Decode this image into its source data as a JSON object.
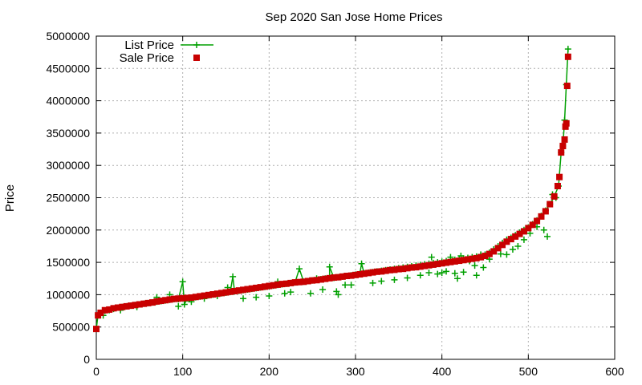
{
  "chart_data": {
    "type": "scatter",
    "title": "Sep 2020 San Jose Home Prices",
    "xlabel": "",
    "ylabel": "Price",
    "xlim": [
      0,
      600
    ],
    "ylim": [
      0,
      5000000
    ],
    "x_ticks": [
      0,
      100,
      200,
      300,
      400,
      500,
      600
    ],
    "x_tick_labels": [
      "0",
      "100",
      "200",
      "300",
      "400",
      "500",
      "600"
    ],
    "y_ticks": [
      0,
      500000,
      1000000,
      1500000,
      2000000,
      2500000,
      3000000,
      3500000,
      4000000,
      4500000,
      5000000
    ],
    "y_tick_labels": [
      "0",
      "500000",
      "1000000",
      "1500000",
      "2000000",
      "2500000",
      "3000000",
      "3500000",
      "4000000",
      "4500000",
      "5000000"
    ],
    "grid": true,
    "legend_position": "top-left",
    "series": [
      {
        "name": "List Price",
        "style": "line-cross",
        "color": "#00a000",
        "points": [
          [
            0,
            470000
          ],
          [
            2,
            690000
          ],
          [
            5,
            720000
          ],
          [
            10,
            750000
          ],
          [
            15,
            760000
          ],
          [
            20,
            780000
          ],
          [
            25,
            800000
          ],
          [
            30,
            810000
          ],
          [
            35,
            820000
          ],
          [
            40,
            830000
          ],
          [
            45,
            840000
          ],
          [
            50,
            850000
          ],
          [
            55,
            860000
          ],
          [
            60,
            870000
          ],
          [
            65,
            880000
          ],
          [
            70,
            890000
          ],
          [
            75,
            900000
          ],
          [
            80,
            910000
          ],
          [
            85,
            920000
          ],
          [
            90,
            930000
          ],
          [
            95,
            930000
          ],
          [
            100,
            1200000
          ],
          [
            102,
            850000
          ],
          [
            105,
            940000
          ],
          [
            110,
            950000
          ],
          [
            115,
            960000
          ],
          [
            120,
            970000
          ],
          [
            125,
            980000
          ],
          [
            130,
            990000
          ],
          [
            135,
            1000000
          ],
          [
            140,
            1010000
          ],
          [
            145,
            1020000
          ],
          [
            150,
            1030000
          ],
          [
            155,
            1040000
          ],
          [
            158,
            1280000
          ],
          [
            160,
            1050000
          ],
          [
            165,
            1060000
          ],
          [
            170,
            1070000
          ],
          [
            175,
            1080000
          ],
          [
            180,
            1090000
          ],
          [
            185,
            1100000
          ],
          [
            190,
            1110000
          ],
          [
            195,
            1120000
          ],
          [
            200,
            1130000
          ],
          [
            205,
            1140000
          ],
          [
            210,
            1150000
          ],
          [
            215,
            1160000
          ],
          [
            220,
            1170000
          ],
          [
            225,
            1180000
          ],
          [
            230,
            1190000
          ],
          [
            235,
            1400000
          ],
          [
            240,
            1200000
          ],
          [
            245,
            1210000
          ],
          [
            250,
            1220000
          ],
          [
            255,
            1230000
          ],
          [
            260,
            1240000
          ],
          [
            265,
            1250000
          ],
          [
            270,
            1260000
          ],
          [
            270,
            1430000
          ],
          [
            275,
            1260000
          ],
          [
            280,
            1270000
          ],
          [
            285,
            1280000
          ],
          [
            290,
            1290000
          ],
          [
            295,
            1300000
          ],
          [
            300,
            1310000
          ],
          [
            305,
            1320000
          ],
          [
            307,
            1480000
          ],
          [
            310,
            1330000
          ],
          [
            315,
            1340000
          ],
          [
            320,
            1350000
          ],
          [
            325,
            1360000
          ],
          [
            330,
            1370000
          ],
          [
            335,
            1380000
          ],
          [
            340,
            1390000
          ],
          [
            345,
            1400000
          ],
          [
            350,
            1410000
          ],
          [
            355,
            1420000
          ],
          [
            360,
            1430000
          ],
          [
            365,
            1440000
          ],
          [
            370,
            1450000
          ],
          [
            375,
            1460000
          ],
          [
            380,
            1470000
          ],
          [
            385,
            1480000
          ],
          [
            390,
            1490000
          ],
          [
            395,
            1500000
          ],
          [
            400,
            1510000
          ],
          [
            405,
            1520000
          ],
          [
            410,
            1530000
          ],
          [
            415,
            1540000
          ],
          [
            420,
            1550000
          ],
          [
            425,
            1560000
          ],
          [
            430,
            1570000
          ],
          [
            435,
            1580000
          ],
          [
            440,
            1590000
          ],
          [
            445,
            1600000
          ],
          [
            450,
            1620000
          ],
          [
            455,
            1650000
          ],
          [
            460,
            1700000
          ],
          [
            465,
            1750000
          ],
          [
            470,
            1800000
          ],
          [
            475,
            1850000
          ],
          [
            480,
            1880000
          ],
          [
            485,
            1920000
          ],
          [
            490,
            1960000
          ],
          [
            495,
            2000000
          ],
          [
            500,
            2040000
          ],
          [
            505,
            2090000
          ],
          [
            510,
            2150000
          ],
          [
            515,
            2220000
          ],
          [
            520,
            2300000
          ],
          [
            525,
            2400000
          ],
          [
            530,
            2520000
          ],
          [
            535,
            2680000
          ],
          [
            538,
            3200000
          ],
          [
            540,
            3300000
          ],
          [
            542,
            3700000
          ],
          [
            544,
            4250000
          ],
          [
            546,
            4800000
          ]
        ],
        "outliers": [
          [
            8,
            680000
          ],
          [
            28,
            760000
          ],
          [
            47,
            810000
          ],
          [
            70,
            960000
          ],
          [
            85,
            1000000
          ],
          [
            95,
            820000
          ],
          [
            110,
            890000
          ],
          [
            125,
            940000
          ],
          [
            140,
            980000
          ],
          [
            152,
            1110000
          ],
          [
            170,
            940000
          ],
          [
            185,
            960000
          ],
          [
            200,
            980000
          ],
          [
            210,
            1200000
          ],
          [
            218,
            1020000
          ],
          [
            225,
            1040000
          ],
          [
            248,
            1020000
          ],
          [
            255,
            1250000
          ],
          [
            262,
            1080000
          ],
          [
            278,
            1050000
          ],
          [
            280,
            1000000
          ],
          [
            288,
            1150000
          ],
          [
            295,
            1150000
          ],
          [
            320,
            1180000
          ],
          [
            330,
            1210000
          ],
          [
            345,
            1230000
          ],
          [
            360,
            1260000
          ],
          [
            375,
            1300000
          ],
          [
            385,
            1340000
          ],
          [
            388,
            1580000
          ],
          [
            395,
            1320000
          ],
          [
            400,
            1340000
          ],
          [
            405,
            1360000
          ],
          [
            410,
            1580000
          ],
          [
            415,
            1330000
          ],
          [
            418,
            1250000
          ],
          [
            422,
            1600000
          ],
          [
            425,
            1350000
          ],
          [
            432,
            1520000
          ],
          [
            438,
            1450000
          ],
          [
            440,
            1300000
          ],
          [
            445,
            1620000
          ],
          [
            448,
            1420000
          ],
          [
            455,
            1550000
          ],
          [
            468,
            1630000
          ],
          [
            475,
            1620000
          ],
          [
            482,
            1700000
          ],
          [
            488,
            1750000
          ],
          [
            495,
            1850000
          ],
          [
            502,
            1950000
          ],
          [
            510,
            2050000
          ],
          [
            518,
            2000000
          ],
          [
            522,
            1900000
          ],
          [
            528,
            2550000
          ],
          [
            532,
            2500000
          ]
        ]
      },
      {
        "name": "Sale Price",
        "style": "square",
        "color": "#c80000",
        "points": [
          [
            0,
            470000
          ],
          [
            2,
            680000
          ],
          [
            5,
            720000
          ],
          [
            10,
            760000
          ],
          [
            15,
            770000
          ],
          [
            20,
            790000
          ],
          [
            25,
            800000
          ],
          [
            30,
            810000
          ],
          [
            35,
            820000
          ],
          [
            40,
            830000
          ],
          [
            45,
            840000
          ],
          [
            50,
            850000
          ],
          [
            55,
            860000
          ],
          [
            60,
            870000
          ],
          [
            65,
            880000
          ],
          [
            70,
            895000
          ],
          [
            75,
            905000
          ],
          [
            80,
            915000
          ],
          [
            85,
            925000
          ],
          [
            90,
            935000
          ],
          [
            95,
            940000
          ],
          [
            100,
            945000
          ],
          [
            105,
            950000
          ],
          [
            110,
            955000
          ],
          [
            115,
            965000
          ],
          [
            120,
            975000
          ],
          [
            125,
            985000
          ],
          [
            130,
            995000
          ],
          [
            135,
            1005000
          ],
          [
            140,
            1015000
          ],
          [
            145,
            1025000
          ],
          [
            150,
            1035000
          ],
          [
            155,
            1045000
          ],
          [
            160,
            1055000
          ],
          [
            165,
            1065000
          ],
          [
            170,
            1075000
          ],
          [
            175,
            1085000
          ],
          [
            180,
            1095000
          ],
          [
            185,
            1105000
          ],
          [
            190,
            1115000
          ],
          [
            195,
            1125000
          ],
          [
            200,
            1135000
          ],
          [
            205,
            1145000
          ],
          [
            210,
            1155000
          ],
          [
            215,
            1165000
          ],
          [
            220,
            1170000
          ],
          [
            225,
            1180000
          ],
          [
            230,
            1190000
          ],
          [
            235,
            1195000
          ],
          [
            240,
            1200000
          ],
          [
            245,
            1210000
          ],
          [
            250,
            1220000
          ],
          [
            255,
            1225000
          ],
          [
            260,
            1235000
          ],
          [
            265,
            1245000
          ],
          [
            270,
            1255000
          ],
          [
            275,
            1265000
          ],
          [
            280,
            1270000
          ],
          [
            285,
            1280000
          ],
          [
            290,
            1290000
          ],
          [
            295,
            1295000
          ],
          [
            300,
            1305000
          ],
          [
            305,
            1315000
          ],
          [
            310,
            1325000
          ],
          [
            315,
            1335000
          ],
          [
            320,
            1345000
          ],
          [
            325,
            1355000
          ],
          [
            330,
            1360000
          ],
          [
            335,
            1370000
          ],
          [
            340,
            1380000
          ],
          [
            345,
            1385000
          ],
          [
            350,
            1395000
          ],
          [
            355,
            1400000
          ],
          [
            360,
            1410000
          ],
          [
            365,
            1420000
          ],
          [
            370,
            1425000
          ],
          [
            375,
            1435000
          ],
          [
            380,
            1445000
          ],
          [
            385,
            1455000
          ],
          [
            390,
            1465000
          ],
          [
            395,
            1475000
          ],
          [
            400,
            1485000
          ],
          [
            405,
            1495000
          ],
          [
            410,
            1505000
          ],
          [
            415,
            1515000
          ],
          [
            420,
            1525000
          ],
          [
            425,
            1535000
          ],
          [
            430,
            1545000
          ],
          [
            435,
            1555000
          ],
          [
            440,
            1565000
          ],
          [
            445,
            1580000
          ],
          [
            450,
            1600000
          ],
          [
            455,
            1630000
          ],
          [
            460,
            1670000
          ],
          [
            465,
            1720000
          ],
          [
            470,
            1770000
          ],
          [
            475,
            1820000
          ],
          [
            480,
            1860000
          ],
          [
            485,
            1900000
          ],
          [
            490,
            1940000
          ],
          [
            495,
            1980000
          ],
          [
            500,
            2030000
          ],
          [
            505,
            2080000
          ],
          [
            510,
            2140000
          ],
          [
            515,
            2210000
          ],
          [
            520,
            2290000
          ],
          [
            525,
            2400000
          ],
          [
            530,
            2520000
          ],
          [
            534,
            2680000
          ],
          [
            536,
            2820000
          ],
          [
            538,
            3200000
          ],
          [
            540,
            3300000
          ],
          [
            542,
            3400000
          ],
          [
            543,
            3600000
          ],
          [
            544,
            3650000
          ],
          [
            545,
            4230000
          ],
          [
            546,
            4680000
          ]
        ]
      }
    ]
  }
}
